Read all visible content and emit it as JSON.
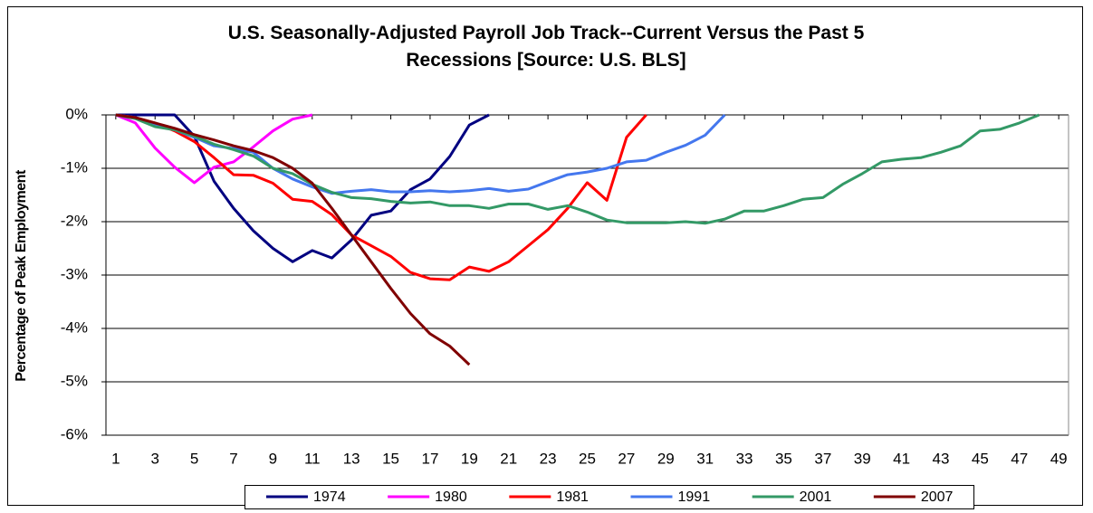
{
  "chart_data": {
    "type": "line",
    "title": "U.S. Seasonally-Adjusted Payroll Job Track--Current Versus the Past 5 Recessions [Source: U.S. BLS]",
    "ylabel": "Percentage of Peak Employment",
    "x": [
      1,
      2,
      3,
      4,
      5,
      6,
      7,
      8,
      9,
      10,
      11,
      12,
      13,
      14,
      15,
      16,
      17,
      18,
      19,
      20,
      21,
      22,
      23,
      24,
      25,
      26,
      27,
      28,
      29,
      30,
      31,
      32,
      33,
      34,
      35,
      36,
      37,
      38,
      39,
      40,
      41,
      42,
      43,
      44,
      45,
      46,
      47,
      48,
      49
    ],
    "xlim": [
      0.5,
      49.5
    ],
    "xticks": [
      1,
      3,
      5,
      7,
      9,
      11,
      13,
      15,
      17,
      19,
      21,
      23,
      25,
      27,
      29,
      31,
      33,
      35,
      37,
      39,
      41,
      43,
      45,
      47,
      49
    ],
    "ylim": [
      -6,
      0
    ],
    "yticks": [
      {
        "value": -6,
        "label": "-6%"
      },
      {
        "value": -5,
        "label": "-5%"
      },
      {
        "value": -4,
        "label": "-4%"
      },
      {
        "value": -3,
        "label": "-3%"
      },
      {
        "value": -2,
        "label": "-2%"
      },
      {
        "value": -1,
        "label": "-1%"
      },
      {
        "value": 0,
        "label": "0%"
      }
    ],
    "grid": true,
    "legend": "bottom",
    "series": [
      {
        "name": "1974",
        "color": "#000080",
        "values": [
          0,
          0,
          0,
          0,
          -0.4,
          -1.24,
          -1.75,
          -2.17,
          -2.5,
          -2.75,
          -2.54,
          -2.68,
          -2.34,
          -1.88,
          -1.8,
          -1.4,
          -1.2,
          -0.78,
          -0.19,
          0,
          null,
          null,
          null,
          null,
          null,
          null,
          null,
          null,
          null,
          null,
          null,
          null,
          null,
          null,
          null,
          null,
          null,
          null,
          null,
          null,
          null,
          null,
          null,
          null,
          null,
          null,
          null,
          null,
          null
        ]
      },
      {
        "name": "1980",
        "color": "#ff00ff",
        "values": [
          0,
          -0.15,
          -0.62,
          -0.98,
          -1.27,
          -0.98,
          -0.88,
          -0.6,
          -0.3,
          -0.08,
          0,
          null,
          null,
          null,
          null,
          null,
          null,
          null,
          null,
          null,
          null,
          null,
          null,
          null,
          null,
          null,
          null,
          null,
          null,
          null,
          null,
          null,
          null,
          null,
          null,
          null,
          null,
          null,
          null,
          null,
          null,
          null,
          null,
          null,
          null,
          null,
          null,
          null,
          null
        ]
      },
      {
        "name": "1981",
        "color": "#ff0000",
        "values": [
          0,
          -0.05,
          -0.15,
          -0.3,
          -0.5,
          -0.8,
          -1.12,
          -1.13,
          -1.28,
          -1.58,
          -1.62,
          -1.87,
          -2.25,
          -2.45,
          -2.65,
          -2.95,
          -3.07,
          -3.09,
          -2.85,
          -2.93,
          -2.75,
          -2.45,
          -2.15,
          -1.75,
          -1.27,
          -1.6,
          -0.42,
          0,
          null,
          null,
          null,
          null,
          null,
          null,
          null,
          null,
          null,
          null,
          null,
          null,
          null,
          null,
          null,
          null,
          null,
          null,
          null,
          null,
          null
        ]
      },
      {
        "name": "1991",
        "color": "#4477ee",
        "values": [
          0,
          -0.05,
          -0.18,
          -0.28,
          -0.42,
          -0.58,
          -0.63,
          -0.7,
          -1.0,
          -1.2,
          -1.35,
          -1.47,
          -1.43,
          -1.4,
          -1.44,
          -1.44,
          -1.42,
          -1.44,
          -1.42,
          -1.38,
          -1.43,
          -1.39,
          -1.25,
          -1.12,
          -1.07,
          -1.0,
          -0.88,
          -0.85,
          -0.7,
          -0.57,
          -0.38,
          0,
          null,
          null,
          null,
          null,
          null,
          null,
          null,
          null,
          null,
          null,
          null,
          null,
          null,
          null,
          null,
          null,
          null
        ]
      },
      {
        "name": "2001",
        "color": "#339966",
        "values": [
          0,
          -0.07,
          -0.22,
          -0.28,
          -0.4,
          -0.55,
          -0.65,
          -0.77,
          -1.0,
          -1.1,
          -1.3,
          -1.45,
          -1.55,
          -1.57,
          -1.62,
          -1.65,
          -1.63,
          -1.7,
          -1.7,
          -1.75,
          -1.67,
          -1.67,
          -1.77,
          -1.7,
          -1.82,
          -1.97,
          -2.02,
          -2.02,
          -2.02,
          -2.0,
          -2.03,
          -1.95,
          -1.8,
          -1.8,
          -1.7,
          -1.58,
          -1.55,
          -1.3,
          -1.1,
          -0.88,
          -0.83,
          -0.8,
          -0.7,
          -0.58,
          -0.3,
          -0.27,
          -0.15,
          0,
          null
        ]
      },
      {
        "name": "2007",
        "color": "#800000",
        "values": [
          0,
          -0.05,
          -0.15,
          -0.25,
          -0.37,
          -0.47,
          -0.58,
          -0.67,
          -0.8,
          -1.0,
          -1.28,
          -1.75,
          -2.25,
          -2.75,
          -3.25,
          -3.72,
          -4.1,
          -4.33,
          -4.68,
          null,
          null,
          null,
          null,
          null,
          null,
          null,
          null,
          null,
          null,
          null,
          null,
          null,
          null,
          null,
          null,
          null,
          null,
          null,
          null,
          null,
          null,
          null,
          null,
          null,
          null,
          null,
          null,
          null,
          null
        ]
      }
    ]
  }
}
